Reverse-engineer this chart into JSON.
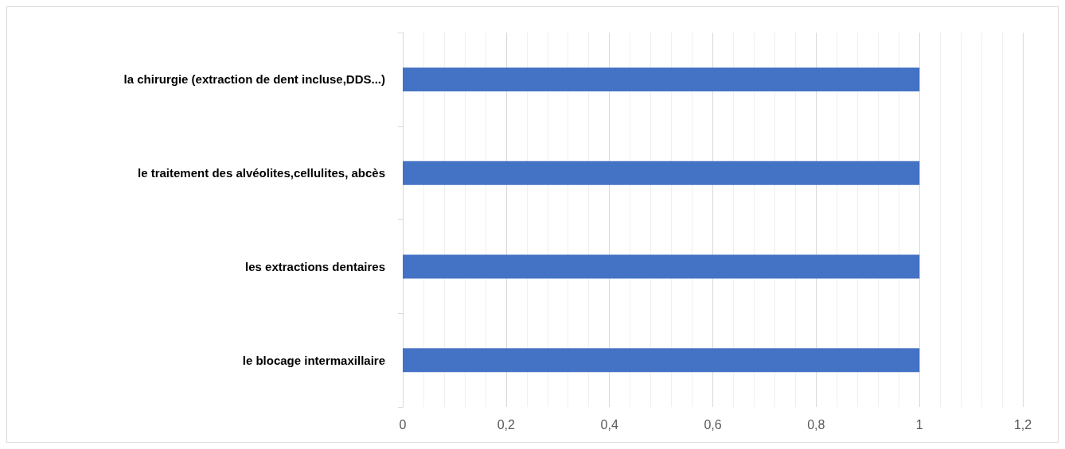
{
  "chart_data": {
    "type": "bar",
    "orientation": "horizontal",
    "categories": [
      "la chirurgie (extraction de dent incluse,DDS...)",
      "le traitement des alvéolites,cellulites, abcès",
      "les extractions dentaires",
      "le blocage intermaxillaire"
    ],
    "values": [
      1,
      1,
      1,
      1
    ],
    "color": "#4472c4",
    "xlim": [
      0,
      1.2
    ],
    "xticks": [
      0,
      {
        "value": 0.2,
        "label": "0,2"
      },
      {
        "value": 0.4,
        "label": "0,4"
      },
      {
        "value": 0.6,
        "label": "0,6"
      },
      {
        "value": 0.8,
        "label": "0,8"
      },
      1,
      {
        "value": 1.2,
        "label": "1,2"
      }
    ],
    "grid": "x"
  }
}
